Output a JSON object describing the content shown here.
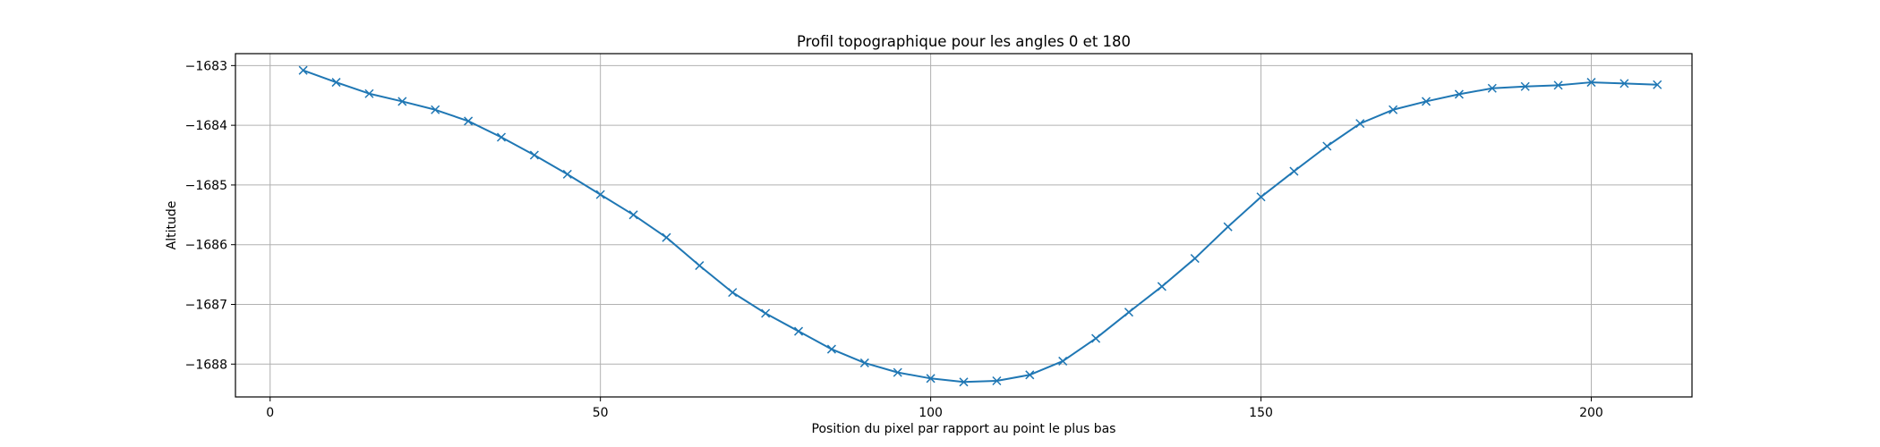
{
  "chart_data": {
    "type": "line",
    "title": "Profil topographique pour les angles 0 et 180",
    "xlabel": "Position du pixel par rapport au point le plus bas",
    "ylabel": "Altitude",
    "xlim": [
      -5.25,
      215.25
    ],
    "ylim": [
      -1688.55,
      -1682.8
    ],
    "xticks": [
      0,
      50,
      100,
      150,
      200
    ],
    "yticks": [
      -1683,
      -1684,
      -1685,
      -1686,
      -1687,
      -1688
    ],
    "x_tick_labels": [
      "0",
      "50",
      "100",
      "150",
      "200"
    ],
    "y_tick_labels": [
      "−1683",
      "−1684",
      "−1685",
      "−1686",
      "−1687",
      "−1688"
    ],
    "grid": true,
    "marker": "x",
    "line_color": "#1f77b4",
    "series": [
      {
        "x": [
          5,
          10,
          15,
          20,
          25,
          30,
          35,
          40,
          45,
          50,
          55,
          60,
          65,
          70,
          75,
          80,
          85,
          90,
          95,
          100,
          105,
          110,
          115,
          120,
          125,
          130,
          135,
          140,
          145,
          150,
          155,
          160,
          165,
          170,
          175,
          180,
          185,
          190,
          195,
          200,
          205,
          210
        ],
        "y": [
          -1683.08,
          -1683.28,
          -1683.47,
          -1683.6,
          -1683.74,
          -1683.93,
          -1684.2,
          -1684.5,
          -1684.82,
          -1685.16,
          -1685.5,
          -1685.88,
          -1686.35,
          -1686.8,
          -1687.15,
          -1687.45,
          -1687.75,
          -1687.98,
          -1688.14,
          -1688.24,
          -1688.3,
          -1688.28,
          -1688.18,
          -1687.95,
          -1687.57,
          -1687.13,
          -1686.7,
          -1686.23,
          -1685.7,
          -1685.2,
          -1684.77,
          -1684.35,
          -1683.97,
          -1683.74,
          -1683.6,
          -1683.48,
          -1683.38,
          -1683.35,
          -1683.33,
          -1683.28,
          -1683.3,
          -1683.32
        ]
      }
    ]
  }
}
